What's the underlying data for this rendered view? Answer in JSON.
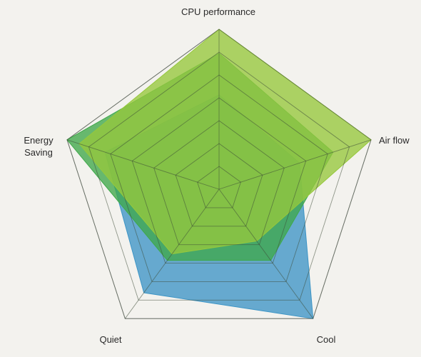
{
  "chart_data": {
    "type": "radar",
    "axes": [
      "CPU performance",
      "Air flow",
      "Cool",
      "Quiet",
      "Energy Saving"
    ],
    "axis_label_lines": [
      [
        "CPU performance"
      ],
      [
        "Air flow"
      ],
      [
        "Cool"
      ],
      [
        "Quiet"
      ],
      [
        "Energy",
        "Saving"
      ]
    ],
    "range": [
      0,
      100
    ],
    "grid_rings": 7,
    "grid": true,
    "legend": "none",
    "series": [
      {
        "values": [
          59,
          53,
          100,
          80,
          75
        ],
        "color": "#3d95c6"
      },
      {
        "values": [
          85,
          75,
          55,
          55,
          100
        ],
        "color": "#3fa84a"
      },
      {
        "values": [
          100,
          100,
          40,
          50,
          92
        ],
        "color": "#96c83c"
      }
    ]
  }
}
